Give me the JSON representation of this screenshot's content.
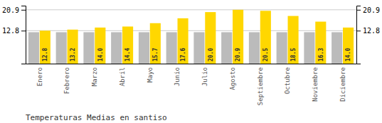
{
  "chart_data": {
    "type": "bar",
    "title": "Temperaturas Medias en santiso",
    "categories": [
      "Enero",
      "Febrero",
      "Marzo",
      "Abril",
      "Mayo",
      "Junio",
      "Julio",
      "Agosto",
      "Septiembre",
      "Octubre",
      "Noviembre",
      "Diciembre"
    ],
    "series": [
      {
        "color": "#BBBBBB",
        "values": [
          12.2,
          12.2,
          12.2,
          12.2,
          12.2,
          12.2,
          12.2,
          12.2,
          12.2,
          12.2,
          12.2,
          12.2
        ]
      },
      {
        "color": "#FFD700",
        "values": [
          12.8,
          13.2,
          14.0,
          14.4,
          15.7,
          17.6,
          20.0,
          20.9,
          20.5,
          18.5,
          16.3,
          14.0
        ],
        "value_labels": [
          "12.8",
          "13.2",
          "14.0",
          "14.4",
          "15.7",
          "17.6",
          "20.0",
          "20.9",
          "20.5",
          "18.5",
          "16.3",
          "14.0"
        ],
        "data_labels": true
      }
    ],
    "ylim": [
      0,
      22.5
    ],
    "yticks": [
      12.8,
      20.9
    ],
    "y2lim": [
      0,
      22.5
    ],
    "y2ticks": [
      12.8,
      20.9
    ],
    "grid": true
  }
}
